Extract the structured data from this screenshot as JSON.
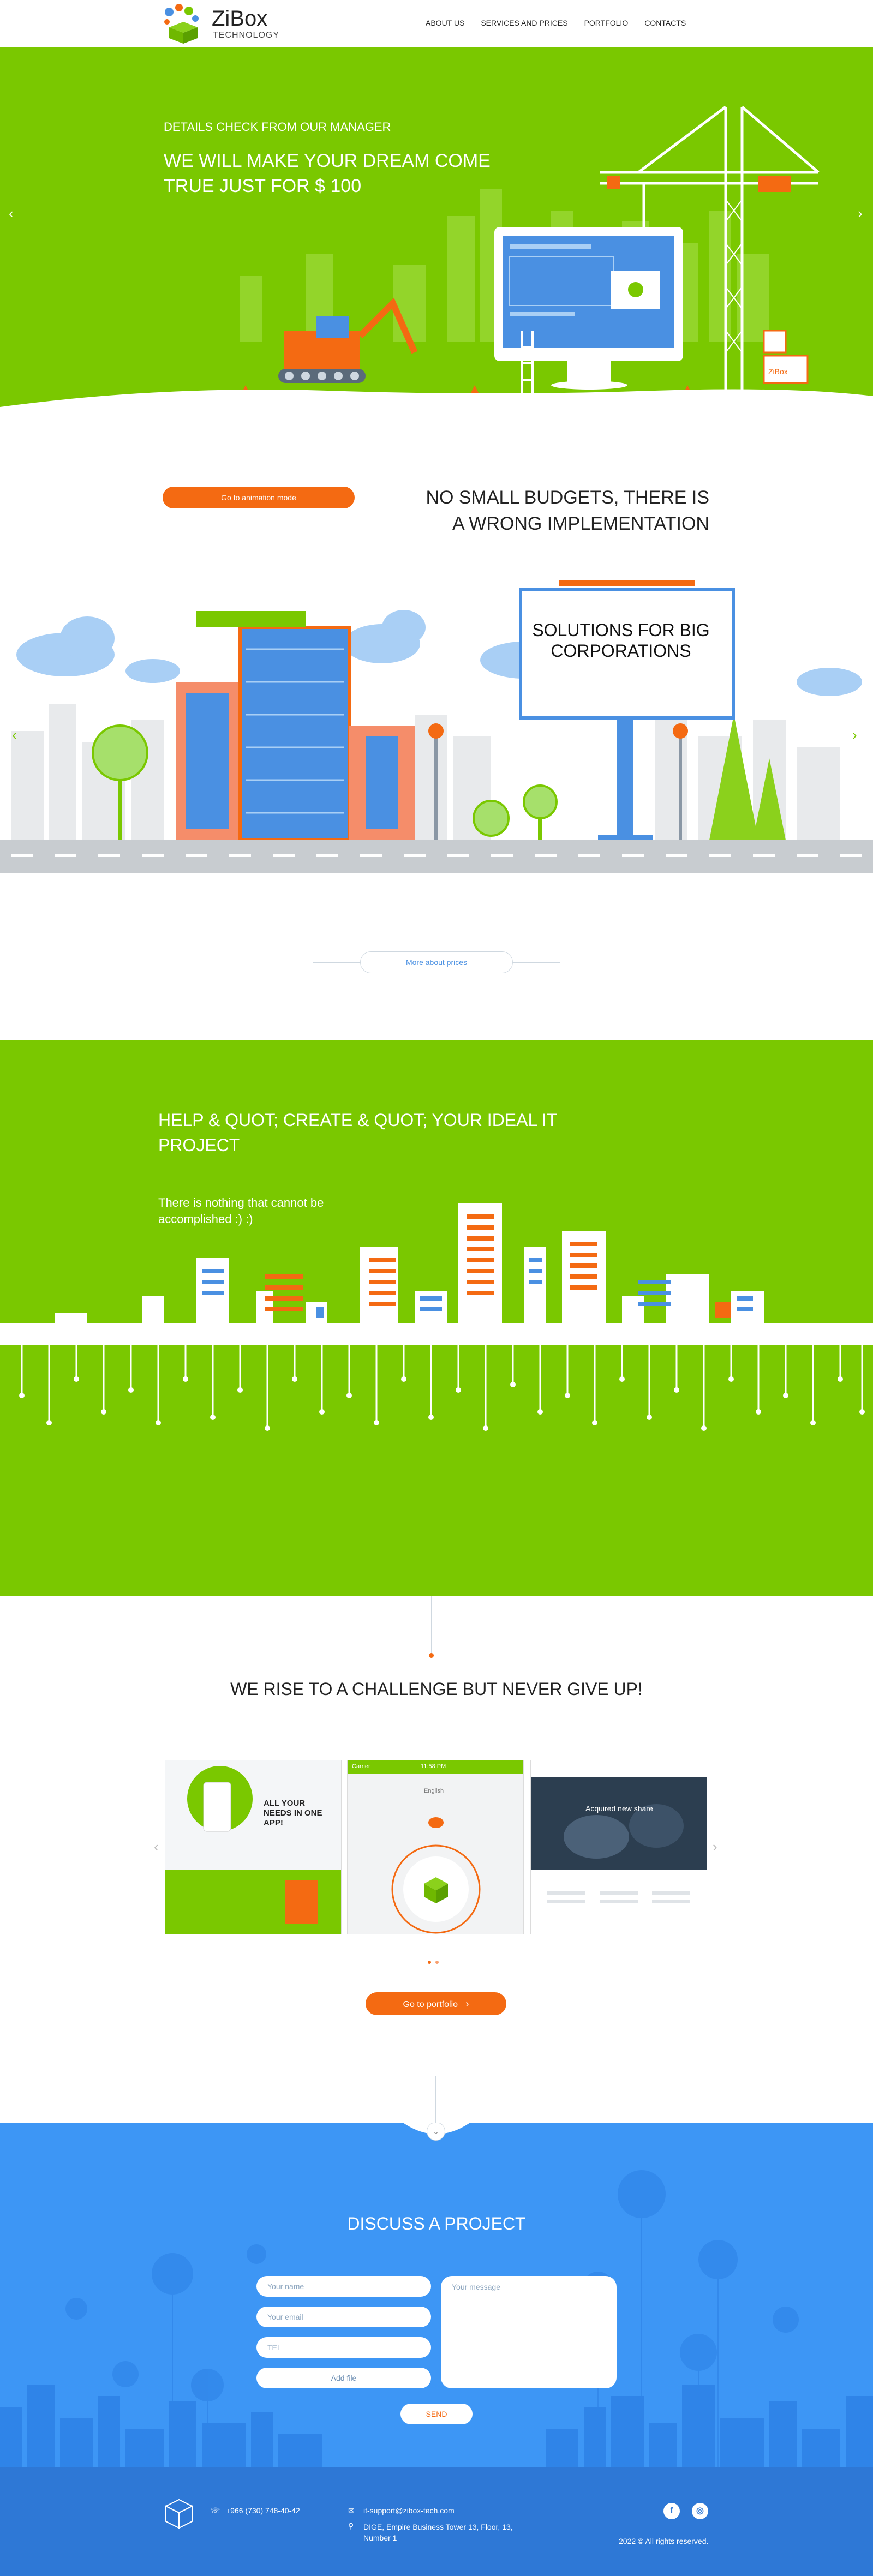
{
  "brand": {
    "name": "ZiBox",
    "subtitle": "TECHNOLOGY"
  },
  "nav": [
    {
      "label": "ABOUT US"
    },
    {
      "label": "SERVICES AND PRICES"
    },
    {
      "label": "PORTFOLIO"
    },
    {
      "label": "CONTACTS"
    }
  ],
  "hero": {
    "subtitle": "DETAILS CHECK FROM OUR MANAGER",
    "title": "WE WILL MAKE YOUR DREAM COME TRUE JUST FOR $ 100",
    "prev": "‹",
    "next": "›",
    "crate_label": "ZiBox"
  },
  "budgets": {
    "button": "Go to animation mode",
    "title": "NO SMALL BUDGETS, THERE IS A WRONG IMPLEMENTATION",
    "billboard": "SOLUTIONS FOR BIG CORPORATIONS",
    "prev": "‹",
    "next": "›",
    "link": "More about prices"
  },
  "project": {
    "title": "HELP & QUOT; CREATE & QUOT; YOUR IDEAL IT PROJECT",
    "subtitle": "There is nothing that cannot be accomplished :) :)"
  },
  "portfolio": {
    "title": "WE RISE TO A CHALLENGE BUT NEVER GIVE UP!",
    "thumb1_text": "ALL YOUR NEEDS IN ONE APP!",
    "thumb2_status": "Carrier",
    "thumb2_time": "11:58 PM",
    "thumb2_lang": "English",
    "thumb3_text": "Acquired new share",
    "prev": "‹",
    "next": "›",
    "button": "Go to portfolio",
    "button_arrow": "›"
  },
  "contact": {
    "title": "DISCUSS A PROJECT",
    "name_placeholder": "Your name",
    "email_placeholder": "Your email",
    "tel_placeholder": "TEL",
    "add_file": "Add file",
    "message_placeholder": "Your message",
    "send": "SEND"
  },
  "footer": {
    "phone": "+966 (730) 748-40-42",
    "email": "it-support@zibox-tech.com",
    "address": "DIGE, Empire Business Tower 13, Floor, 13, Number 1",
    "copyright": "2022 © All rights reserved.",
    "facebook": "f",
    "instagram": "◎"
  },
  "colors": {
    "green": "#7ac800",
    "orange": "#f46a12",
    "blue": "#3d96f5",
    "dark_blue": "#2e78d6"
  }
}
